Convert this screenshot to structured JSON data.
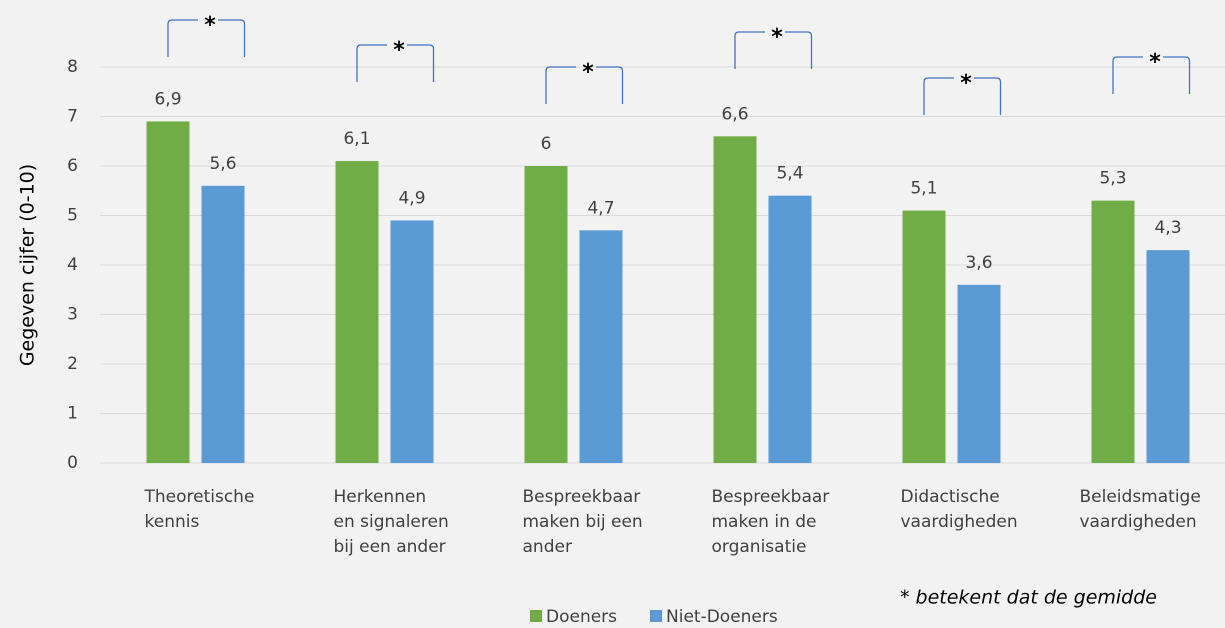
{
  "chart_data": {
    "type": "bar",
    "y_label": "Gegeven cijfer (0-10)",
    "categories": [
      [
        "Theoretische",
        "kennis"
      ],
      [
        "Herkennen",
        "en signaleren",
        "bij een ander"
      ],
      [
        "Bespreekbaar",
        "maken bij een",
        "ander"
      ],
      [
        "Bespreekbaar",
        "maken in de",
        "organisatie"
      ],
      [
        "Didactische",
        "vaardigheden"
      ],
      [
        "Beleidsmatige",
        "vaardigheden"
      ]
    ],
    "series": [
      {
        "name": "Doeners",
        "color": "#70ad47",
        "values": [
          6.9,
          6.1,
          6,
          6.6,
          5.1,
          5.3
        ],
        "value_labels": [
          "6,9",
          "6,1",
          "6",
          "6,6",
          "5,1",
          "5,3"
        ]
      },
      {
        "name": "Niet-Doeners",
        "color": "#5b9bd5",
        "values": [
          5.6,
          4.9,
          4.7,
          5.4,
          3.6,
          4.3
        ],
        "value_labels": [
          "5,6",
          "4,9",
          "4,7",
          "5,4",
          "3,6",
          "4,3"
        ]
      }
    ],
    "annotations": [
      "*",
      "*",
      "*",
      "*",
      "*",
      "*"
    ],
    "footnote": "* betekent dat de gemidde",
    "ylim": [
      0,
      8
    ],
    "yticks": [
      0,
      1,
      2,
      3,
      4,
      5,
      6,
      7,
      8
    ],
    "grid": true,
    "legend": "bottom"
  }
}
